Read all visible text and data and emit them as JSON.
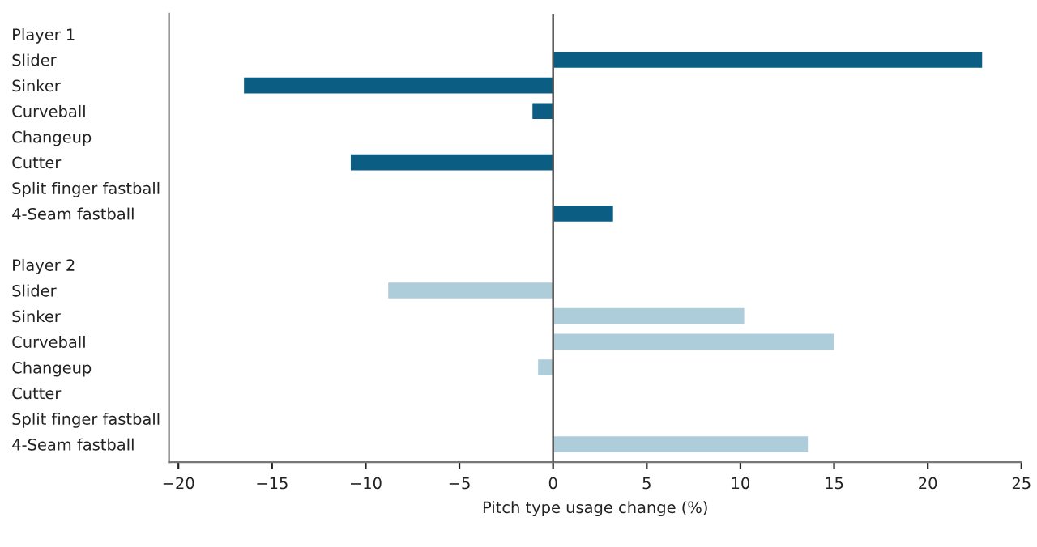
{
  "chart_data": {
    "type": "bar",
    "orientation": "horizontal",
    "xlabel": "Pitch type usage change (%)",
    "categories": [
      "Player 1",
      "Slider",
      "Sinker",
      "Curveball",
      "Changeup",
      "Cutter",
      "Split finger fastball",
      "4-Seam fastball",
      null,
      "Player 2",
      "Slider",
      "Sinker",
      "Curveball",
      "Changeup",
      "Cutter",
      "Split finger fastball",
      "4-Seam fastball"
    ],
    "series": [
      {
        "color": "#0b5d84",
        "values": [
          null,
          22.9,
          -16.5,
          -1.1,
          null,
          -10.8,
          null,
          3.2,
          null,
          null,
          null,
          null,
          null,
          null,
          null,
          null,
          null
        ]
      },
      {
        "color": "#adcdda",
        "values": [
          null,
          null,
          null,
          null,
          null,
          null,
          null,
          null,
          null,
          null,
          -8.8,
          10.2,
          15.0,
          -0.8,
          null,
          null,
          13.6
        ]
      }
    ],
    "xlim": [
      -20.5,
      25
    ],
    "xticks": [
      {
        "value": -20,
        "label": "−20"
      },
      {
        "value": -15,
        "label": "−15"
      },
      {
        "value": -10,
        "label": "−10"
      },
      {
        "value": -5,
        "label": "−5"
      },
      0,
      5,
      10,
      15,
      20,
      25
    ],
    "ref_lines": [
      {
        "axis": "x",
        "value": 0,
        "color": "#555555"
      }
    ],
    "grid": false,
    "legend": false
  }
}
